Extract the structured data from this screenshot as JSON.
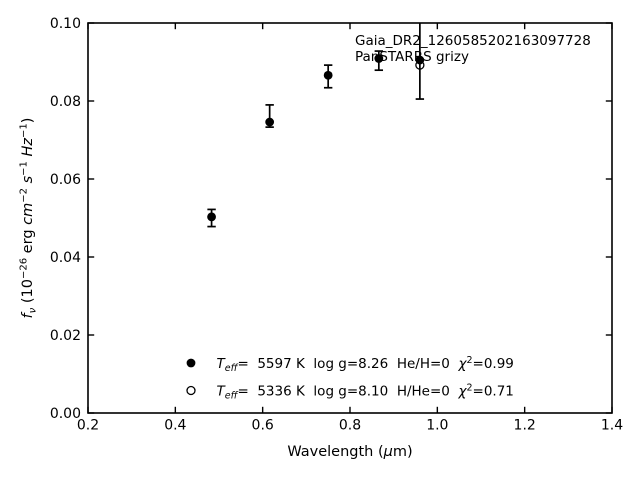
{
  "colors": {
    "foreground": "#000000",
    "background": "#ffffff"
  },
  "chart_data": {
    "type": "scatter",
    "title": "",
    "xlabel": "Wavelength (μm)",
    "ylabel": "f_ν (10^−26 erg cm^−2 s^−1 Hz^−1)",
    "xlabel_parts": {
      "pre": "Wavelength (",
      "mu": "μ",
      "post": "m)"
    },
    "ylabel_parts": {
      "f": "f",
      "nu": "ν",
      "p1": " (10",
      "sup1": "−26",
      "p2": " erg ",
      "cm": "cm",
      "sup2": "−2",
      "s": " s",
      "sup3": "−1",
      "hz": " Hz",
      "sup4": "−1",
      "p3": ")"
    },
    "xlim": [
      0.2,
      1.4
    ],
    "ylim": [
      0.0,
      0.1
    ],
    "xticks": [
      0.2,
      0.4,
      0.6,
      0.8,
      1.0,
      1.2,
      1.4
    ],
    "xtick_labels": [
      "0.2",
      "0.4",
      "0.6",
      "0.8",
      "1.0",
      "1.2",
      "1.4"
    ],
    "yticks": [
      0.0,
      0.02,
      0.04,
      0.06,
      0.08,
      0.1
    ],
    "ytick_labels": [
      "0.00",
      "0.02",
      "0.04",
      "0.06",
      "0.08",
      "0.10"
    ],
    "grid": false,
    "legend_position": "lower center",
    "annotations": {
      "line1": "Gaia_DR2_1260585202163097728",
      "line2": "PanSTARRS grizy"
    },
    "series": [
      {
        "name": "observed-photometry",
        "marker": "filled-circle",
        "points": [
          {
            "x": 0.483,
            "y": 0.0503,
            "err_up": 0.0019,
            "err_down": 0.0025
          },
          {
            "x": 0.616,
            "y": 0.0746,
            "err_up": 0.0044,
            "err_down": 0.0013
          },
          {
            "x": 0.75,
            "y": 0.0866,
            "err_up": 0.0026,
            "err_down": 0.0032
          },
          {
            "x": 0.866,
            "y": 0.0909,
            "err_up": 0.0019,
            "err_down": 0.003
          },
          {
            "x": 0.96,
            "y": 0.0905,
            "err_up": 0.012,
            "err_down": 0.01
          }
        ]
      },
      {
        "name": "second-model-point",
        "marker": "open-circle",
        "points": [
          {
            "x": 0.96,
            "y": 0.0892
          }
        ]
      }
    ],
    "legend": {
      "rows": [
        {
          "marker": "filled-circle",
          "t": "T",
          "sub": "eff",
          "mid": "=  5597 K  log g=8.26  He/H=0  ",
          "chi": "χ",
          "sup": "2",
          "end": "=0.99"
        },
        {
          "marker": "open-circle",
          "t": "T",
          "sub": "eff",
          "mid": "=  5336 K  log g=8.10  H/He=0  ",
          "chi": "χ",
          "sup": "2",
          "end": "=0.71"
        }
      ]
    }
  }
}
